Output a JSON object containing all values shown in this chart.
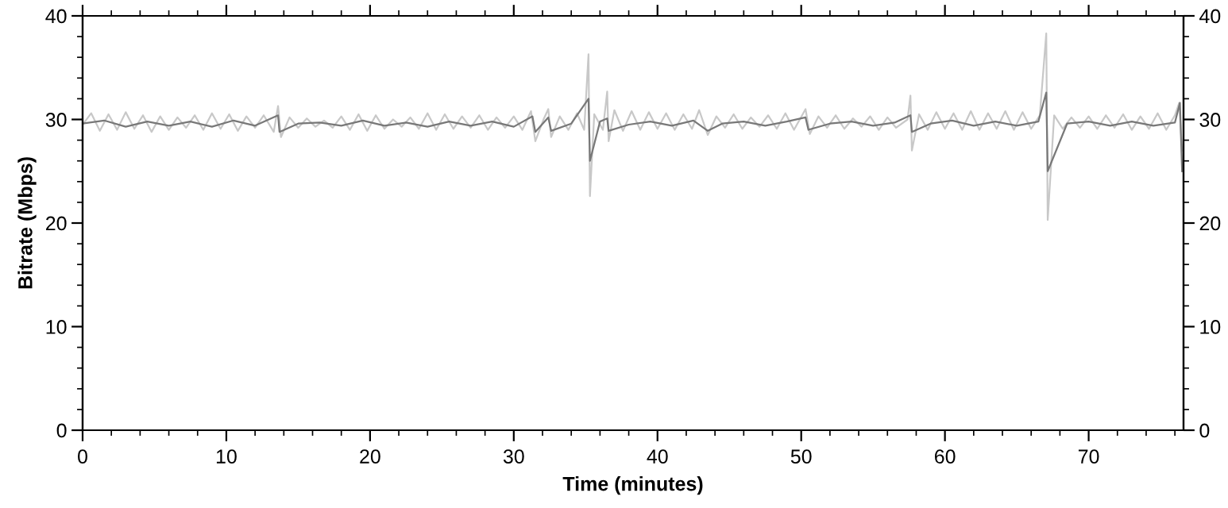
{
  "chart_data": {
    "type": "line",
    "xlabel": "Time (minutes)",
    "ylabel": "Bitrate (Mbps)",
    "xlim": [
      0,
      76.6
    ],
    "xticks": [
      0,
      10,
      20,
      30,
      40,
      50,
      60,
      70
    ],
    "ylim": [
      0,
      40
    ],
    "yticks": [
      0,
      10,
      20,
      30,
      40
    ],
    "y2lim": [
      0,
      40
    ],
    "y2ticks": [
      0,
      10,
      20,
      30,
      40
    ],
    "grid": false,
    "legend": false,
    "marker": "none",
    "line_style": "solid",
    "series": [
      {
        "color": "#c8c8c8",
        "x": [
          0,
          0.6,
          1.2,
          1.8,
          2.4,
          3.0,
          3.6,
          4.2,
          4.8,
          5.4,
          6.0,
          6.6,
          7.2,
          7.8,
          8.4,
          9.0,
          9.6,
          10.2,
          10.8,
          11.4,
          12.0,
          12.6,
          13.3,
          13.6,
          13.8,
          14.4,
          15.0,
          15.6,
          16.2,
          16.8,
          17.4,
          18.0,
          18.6,
          19.2,
          19.8,
          20.4,
          21.0,
          21.6,
          22.2,
          22.8,
          23.4,
          24.0,
          24.6,
          25.2,
          25.8,
          26.4,
          27.0,
          27.6,
          28.2,
          28.8,
          29.4,
          30.0,
          30.6,
          31.2,
          31.5,
          32.1,
          32.4,
          32.6,
          33.2,
          33.8,
          34.4,
          34.9,
          35.2,
          35.3,
          35.6,
          36.2,
          36.5,
          36.6,
          37.0,
          37.6,
          38.2,
          38.8,
          39.4,
          40.0,
          40.6,
          41.2,
          41.8,
          42.4,
          42.9,
          43.5,
          44.1,
          44.7,
          45.3,
          45.9,
          46.5,
          47.1,
          47.7,
          48.3,
          48.9,
          49.5,
          50.3,
          50.6,
          51.2,
          51.8,
          52.4,
          53.0,
          53.6,
          54.2,
          54.8,
          55.4,
          56.0,
          56.6,
          57.4,
          57.6,
          57.7,
          58.2,
          58.8,
          59.4,
          60.0,
          60.6,
          61.2,
          61.8,
          62.4,
          63.0,
          63.6,
          64.2,
          64.8,
          65.4,
          66.0,
          66.6,
          67.05,
          67.15,
          67.6,
          68.2,
          68.8,
          69.4,
          70.0,
          70.6,
          71.2,
          71.8,
          72.4,
          73.0,
          73.6,
          74.2,
          74.8,
          75.4,
          76.0,
          76.3,
          76.5
        ],
        "values": [
          29.5,
          30.6,
          28.9,
          30.5,
          29.0,
          30.7,
          29.1,
          30.4,
          28.8,
          30.3,
          29.0,
          30.2,
          29.2,
          30.4,
          29.0,
          30.6,
          29.1,
          30.5,
          28.9,
          30.3,
          29.2,
          30.4,
          28.8,
          31.3,
          28.3,
          30.2,
          29.2,
          30.1,
          29.3,
          29.9,
          29.2,
          30.3,
          29.0,
          30.5,
          28.9,
          30.4,
          29.1,
          30.0,
          29.3,
          30.2,
          29.1,
          30.6,
          29.0,
          30.5,
          29.1,
          30.3,
          29.2,
          30.4,
          29.0,
          30.2,
          29.2,
          30.3,
          29.0,
          30.8,
          27.9,
          30.1,
          31.0,
          28.3,
          30.3,
          29.0,
          30.6,
          29.0,
          36.3,
          22.6,
          30.5,
          29.0,
          32.7,
          27.9,
          30.9,
          28.9,
          30.8,
          29.0,
          30.7,
          29.1,
          30.6,
          29.0,
          30.5,
          29.1,
          30.9,
          28.5,
          30.3,
          29.2,
          30.5,
          29.1,
          30.2,
          29.3,
          30.4,
          29.1,
          30.6,
          29.0,
          31.0,
          28.6,
          30.3,
          29.2,
          30.4,
          29.1,
          30.1,
          29.3,
          30.3,
          29.0,
          30.2,
          29.2,
          30.0,
          32.3,
          27.0,
          30.5,
          29.0,
          30.7,
          29.1,
          30.6,
          29.0,
          30.8,
          29.0,
          30.6,
          29.1,
          30.8,
          29.0,
          30.7,
          29.1,
          30.4,
          38.3,
          20.3,
          30.4,
          29.1,
          30.2,
          29.2,
          30.3,
          29.1,
          30.4,
          29.2,
          30.5,
          29.0,
          30.3,
          29.1,
          30.6,
          29.0,
          30.4,
          31.6,
          27.0
        ]
      },
      {
        "color": "#787878",
        "x": [
          0,
          1.5,
          3,
          4.5,
          6,
          7.5,
          9,
          10.5,
          12,
          13.6,
          13.7,
          15,
          16.5,
          18,
          19.5,
          21,
          22.5,
          24,
          25.5,
          27,
          28.5,
          30,
          31.3,
          31.5,
          32.4,
          32.6,
          34,
          35.2,
          35.3,
          36,
          36.5,
          36.6,
          38,
          39.5,
          41,
          42.5,
          43.5,
          44.5,
          46,
          47.5,
          49,
          50.3,
          50.5,
          52,
          53.5,
          55,
          56.5,
          57.6,
          57.7,
          59,
          60.5,
          62,
          63.5,
          65,
          66.5,
          67.05,
          67.15,
          68.5,
          70,
          71.5,
          73,
          74.5,
          76,
          76.35,
          76.5
        ],
        "values": [
          29.6,
          29.9,
          29.3,
          29.8,
          29.4,
          29.8,
          29.3,
          29.9,
          29.4,
          30.4,
          28.8,
          29.6,
          29.7,
          29.4,
          29.9,
          29.4,
          29.7,
          29.3,
          29.8,
          29.4,
          29.8,
          29.3,
          30.3,
          28.8,
          30.2,
          28.9,
          29.6,
          32.0,
          26.0,
          29.8,
          30.1,
          28.9,
          29.5,
          29.8,
          29.4,
          29.9,
          28.9,
          29.6,
          29.8,
          29.4,
          29.8,
          30.2,
          29.0,
          29.6,
          29.8,
          29.4,
          29.7,
          30.4,
          28.8,
          29.6,
          29.9,
          29.4,
          29.8,
          29.4,
          29.8,
          32.6,
          25.0,
          29.6,
          29.8,
          29.4,
          29.8,
          29.4,
          29.7,
          31.6,
          25.0
        ]
      }
    ]
  }
}
